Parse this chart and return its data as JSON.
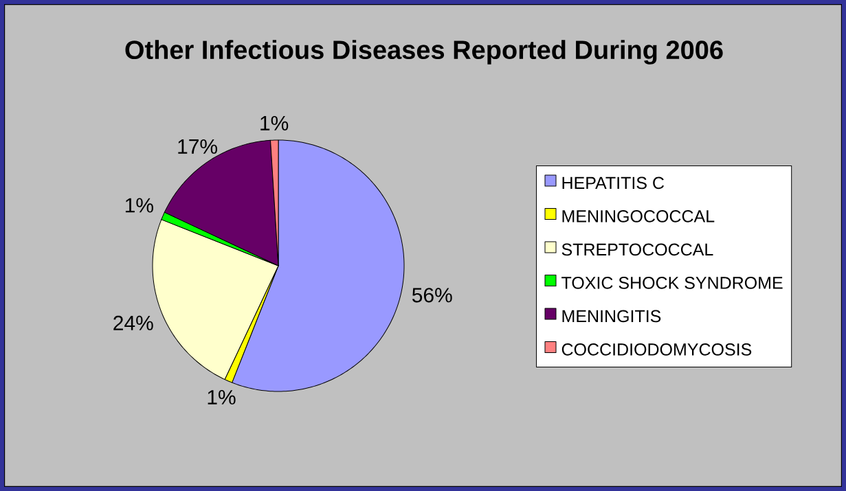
{
  "chart_data": {
    "type": "pie",
    "title": "Other Infectious Diseases Reported During 2006",
    "categories": [
      "HEPATITIS C",
      "MENINGOCOCCAL",
      "STREPTOCOCCAL",
      "TOXIC SHOCK SYNDROME",
      "MENINGITIS",
      "COCCIDIODOMYCOSIS"
    ],
    "values": [
      56,
      1,
      24,
      1,
      17,
      1
    ],
    "colors": [
      "#9999ff",
      "#ffff00",
      "#ffffcc",
      "#00ff00",
      "#660066",
      "#ff8080"
    ],
    "value_labels": [
      "56%",
      "1%",
      "24%",
      "1%",
      "17%",
      "1%"
    ],
    "legend": "right"
  }
}
